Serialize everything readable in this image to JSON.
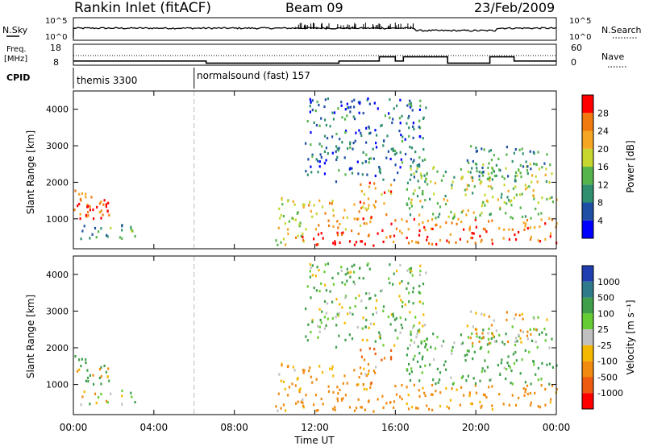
{
  "header": {
    "station": "Rankin Inlet (fitACF)",
    "beam": "Beam 09",
    "date": "23/Feb/2009"
  },
  "sky_panel": {
    "label": "N.Sky",
    "right_label": "N.Search",
    "left_ticks": [
      "10^5",
      "10^0"
    ],
    "right_ticks": [
      "10^5",
      "10^0"
    ]
  },
  "freq_panel": {
    "label_line1": "Freq.",
    "label_line2": "[MHz]",
    "right_label": "Nave",
    "left_ticks": [
      "18",
      "8"
    ],
    "right_ticks": [
      "60",
      "0"
    ]
  },
  "cpid": {
    "label": "CPID",
    "segments": [
      {
        "name": "themis 3300",
        "start_hour": 0
      },
      {
        "name": "normalsound (fast) 157",
        "start_hour": 6
      }
    ]
  },
  "power_panel": {
    "ylabel": "Slant Range [km]",
    "yticks": [
      "1000",
      "2000",
      "3000",
      "4000"
    ],
    "colorbar_label": "Power [dB]",
    "colorbar_ticks": [
      "4",
      "8",
      "12",
      "16",
      "20",
      "24",
      "28"
    ],
    "colorbar_colors": [
      "#0000ff",
      "#1f4fa5",
      "#2f8f6f",
      "#55b44b",
      "#c8d630",
      "#f5a623",
      "#f07a10",
      "#ff0000"
    ]
  },
  "velocity_panel": {
    "ylabel": "Slant Range [km]",
    "yticks": [
      "1000",
      "2000",
      "3000",
      "4000"
    ],
    "colorbar_label": "Velocity [m s⁻¹]",
    "colorbar_ticks": [
      "1000",
      "500",
      "100",
      "25",
      "-25",
      "-100",
      "-500",
      "-1000"
    ],
    "colorbar_colors": [
      "#1f3fb0",
      "#2e7a8a",
      "#3e9e4a",
      "#66cc33",
      "#c0c0c0",
      "#f5b800",
      "#f08a10",
      "#ee5a10",
      "#ff0000"
    ]
  },
  "xaxis": {
    "label": "Time UT",
    "ticks": [
      "00:00",
      "04:00",
      "08:00",
      "12:00",
      "16:00",
      "20:00",
      "00:00"
    ]
  },
  "chart_data": {
    "type": "heatmap",
    "title": "Rankin Inlet (fitACF)",
    "xlabel": "Time UT",
    "ylabel": "Slant Range [km]",
    "xlim_hours": [
      0,
      24
    ],
    "ylim_km": [
      180,
      4500
    ],
    "power_scale_db": [
      0,
      32
    ],
    "velocity_scale_ms": [
      -1000,
      1000
    ],
    "cpid_change_hour": 6,
    "frequency_steps": [
      {
        "start_hour": 0,
        "end_hour": 6.6,
        "mhz": 10
      },
      {
        "start_hour": 6.6,
        "end_hour": 13.2,
        "mhz": 9
      },
      {
        "start_hour": 13.2,
        "end_hour": 15.2,
        "mhz": 10
      },
      {
        "start_hour": 15.2,
        "end_hour": 16,
        "mhz": 12
      },
      {
        "start_hour": 16,
        "end_hour": 16.4,
        "mhz": 10
      },
      {
        "start_hour": 16.4,
        "end_hour": 17.4,
        "mhz": 12
      },
      {
        "start_hour": 17.4,
        "end_hour": 18.6,
        "mhz": 12
      },
      {
        "start_hour": 18.6,
        "end_hour": 20.7,
        "mhz": 9
      },
      {
        "start_hour": 20.7,
        "end_hour": 21.9,
        "mhz": 12
      },
      {
        "start_hour": 21.9,
        "end_hour": 24,
        "mhz": 10
      }
    ],
    "echo_regions": [
      {
        "t0": 0.0,
        "t1": 1.8,
        "r0": 1000,
        "r1": 1800,
        "power": 26,
        "velocity": 300
      },
      {
        "t0": 0.0,
        "t1": 1.8,
        "r0": 1200,
        "r1": 1500,
        "power": 30,
        "velocity": -150
      },
      {
        "t0": 0.3,
        "t1": 3.8,
        "r0": 450,
        "r1": 850,
        "power": 12,
        "velocity": 20
      },
      {
        "t0": 10.0,
        "t1": 11.5,
        "r0": 250,
        "r1": 1600,
        "power": 18,
        "velocity": -120
      },
      {
        "t0": 11.0,
        "t1": 15.5,
        "r0": 250,
        "r1": 700,
        "power": 30,
        "velocity": -300
      },
      {
        "t0": 11.5,
        "t1": 15.0,
        "r0": 700,
        "r1": 1500,
        "power": 22,
        "velocity": -150
      },
      {
        "t0": 14.2,
        "t1": 15.8,
        "r0": 1000,
        "r1": 2000,
        "power": 24,
        "velocity": -500
      },
      {
        "t0": 11.5,
        "t1": 17.5,
        "r0": 2000,
        "r1": 4300,
        "power": 8,
        "velocity": 60
      },
      {
        "t0": 15.5,
        "t1": 24.0,
        "r0": 300,
        "r1": 1000,
        "power": 26,
        "velocity": -200
      },
      {
        "t0": 16.5,
        "t1": 24.0,
        "r0": 1000,
        "r1": 2500,
        "power": 16,
        "velocity": 150
      },
      {
        "t0": 19.5,
        "t1": 23.5,
        "r0": 2000,
        "r1": 3000,
        "power": 10,
        "velocity": -60
      }
    ]
  }
}
